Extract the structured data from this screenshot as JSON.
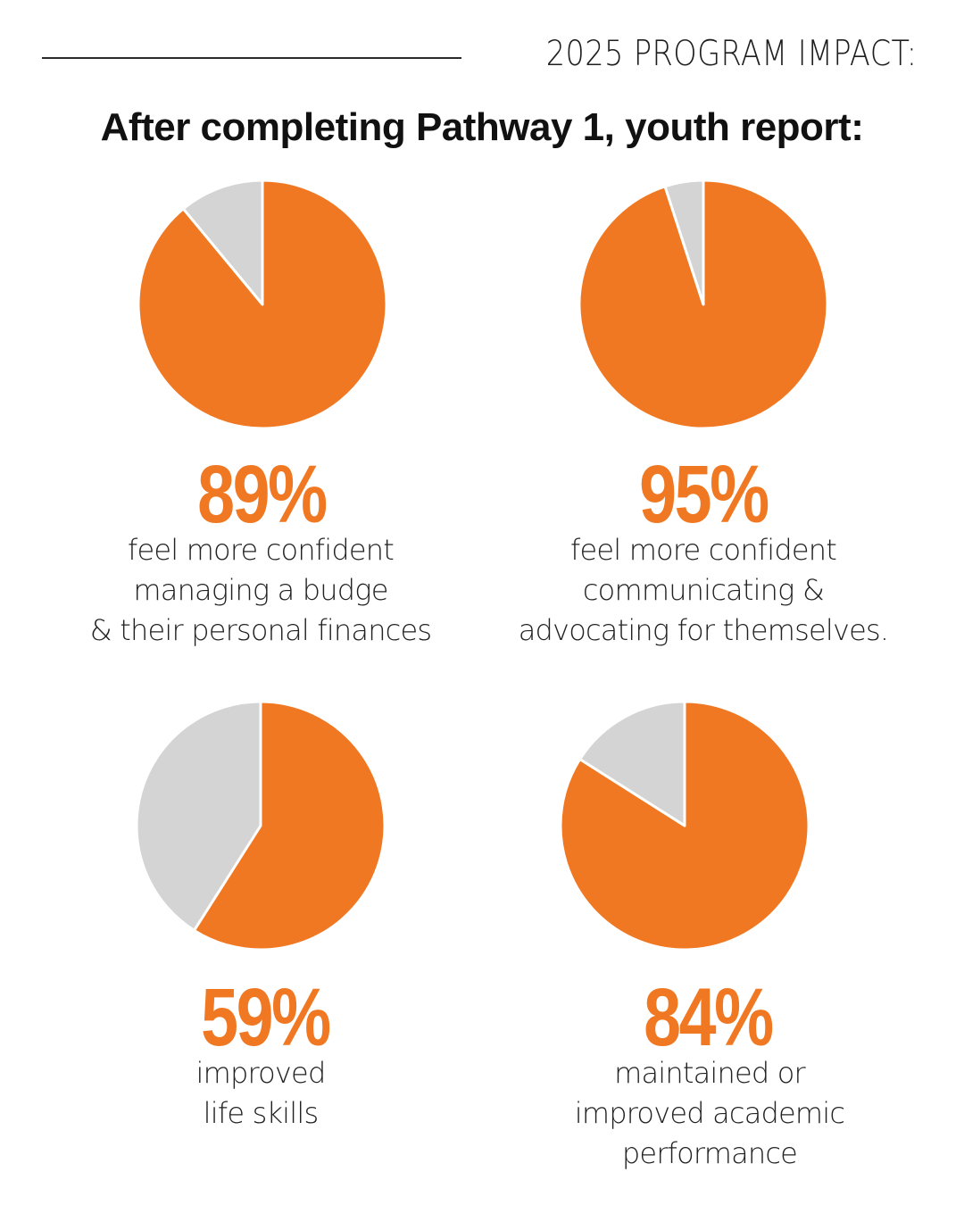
{
  "header": {
    "title": "2025 PROGRAM IMPACT:"
  },
  "heading": "After completing Pathway 1, youth report:",
  "colors": {
    "primary": "#f07822",
    "remainder": "#d4d4d4",
    "stroke": "#ffffff"
  },
  "chart_data": [
    {
      "type": "pie",
      "slices": [
        {
          "value": 89
        },
        {
          "value": 11
        }
      ],
      "label": "89%",
      "caption": [
        "feel more confident",
        "managing a budge",
        "& their personal finances"
      ]
    },
    {
      "type": "pie",
      "slices": [
        {
          "value": 95
        },
        {
          "value": 5
        }
      ],
      "label": "95%",
      "caption": [
        "feel more confident",
        "communicating &",
        "advocating for themselves."
      ]
    },
    {
      "type": "pie",
      "slices": [
        {
          "value": 59
        },
        {
          "value": 41
        }
      ],
      "label": "59%",
      "caption": [
        "improved",
        "life skills"
      ]
    },
    {
      "type": "pie",
      "slices": [
        {
          "value": 84
        },
        {
          "value": 16
        }
      ],
      "label": "84%",
      "caption": [
        "maintained or",
        "improved academic",
        "performance"
      ]
    }
  ]
}
